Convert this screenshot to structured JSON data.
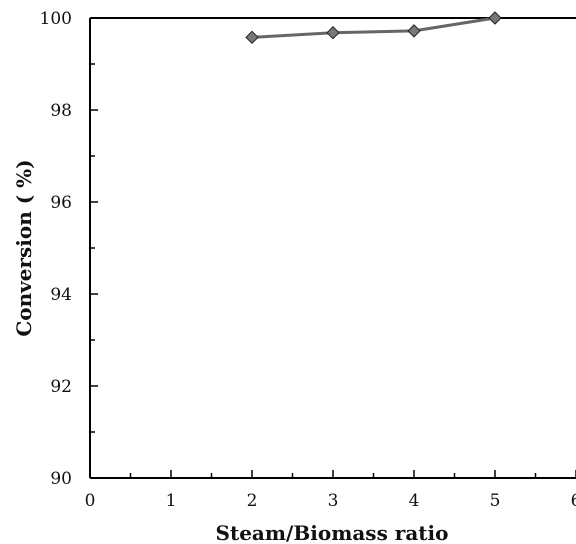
{
  "chart_data": {
    "type": "line",
    "title": "",
    "xlabel": "Steam/Biomass ratio",
    "ylabel": "Conversion ( %)",
    "xlim": [
      0,
      6
    ],
    "ylim": [
      90,
      100
    ],
    "x_ticks": [
      "0",
      "1",
      "2",
      "3",
      "4",
      "5",
      "6"
    ],
    "y_ticks": [
      "90",
      "92",
      "94",
      "96",
      "98",
      "100"
    ],
    "grid": false,
    "legend": "none",
    "marker": "diamond",
    "series": [
      {
        "x": [
          2,
          3,
          4,
          5
        ],
        "values": [
          99.58,
          99.68,
          99.72,
          100.0
        ],
        "line_color": "#666666",
        "marker_color": "#777777"
      }
    ]
  }
}
